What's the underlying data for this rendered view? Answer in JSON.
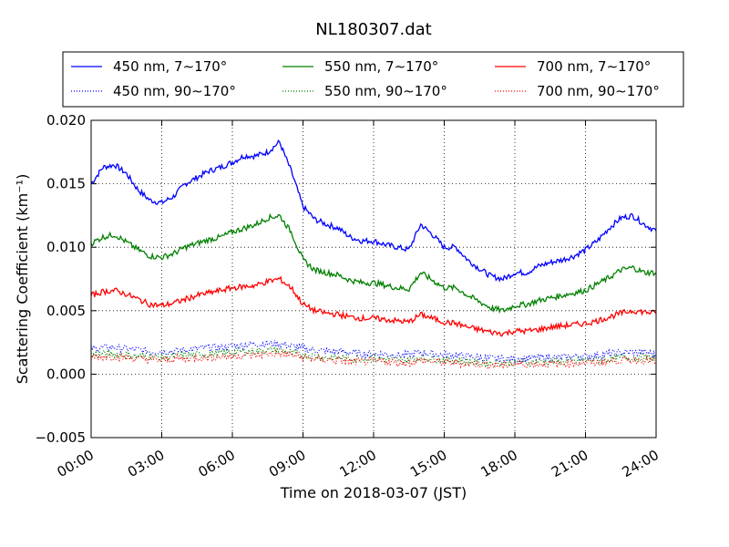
{
  "chart_data": {
    "type": "line",
    "title": "NL180307.dat",
    "xlabel": "Time on 2018-03-07 (JST)",
    "ylabel": "Scattering Coefficient (km⁻¹)",
    "xlim": [
      "00:00",
      "24:00"
    ],
    "ylim": [
      -0.005,
      0.02
    ],
    "grid": true,
    "legend_position": "top",
    "x_ticks": [
      "00:00",
      "03:00",
      "06:00",
      "09:00",
      "12:00",
      "15:00",
      "18:00",
      "21:00",
      "24:00"
    ],
    "y_ticks": [
      "−0.005",
      "0.000",
      "0.005",
      "0.010",
      "0.015",
      "0.020"
    ],
    "x": [
      "00:00",
      "00:30",
      "01:00",
      "01:30",
      "02:00",
      "02:30",
      "03:00",
      "03:30",
      "04:00",
      "04:30",
      "05:00",
      "05:30",
      "06:00",
      "06:30",
      "07:00",
      "07:30",
      "08:00",
      "08:30",
      "09:00",
      "09:30",
      "10:00",
      "10:30",
      "11:00",
      "11:30",
      "12:00",
      "12:30",
      "13:00",
      "13:30",
      "14:00",
      "14:30",
      "15:00",
      "15:30",
      "16:00",
      "16:30",
      "17:00",
      "17:30",
      "18:00",
      "18:30",
      "19:00",
      "19:30",
      "20:00",
      "20:30",
      "21:00",
      "21:30",
      "22:00",
      "22:30",
      "23:00",
      "23:30",
      "24:00"
    ],
    "series": [
      {
        "name": "450 nm, 7∼170°",
        "color": "#0000ff",
        "style": "solid",
        "values": [
          0.015,
          0.0163,
          0.0165,
          0.0158,
          0.0145,
          0.0137,
          0.0135,
          0.014,
          0.015,
          0.0155,
          0.016,
          0.0163,
          0.0167,
          0.0172,
          0.0172,
          0.0175,
          0.0183,
          0.016,
          0.0132,
          0.0122,
          0.0118,
          0.0115,
          0.0108,
          0.0105,
          0.0105,
          0.0102,
          0.01,
          0.0098,
          0.0118,
          0.011,
          0.01,
          0.01,
          0.009,
          0.0083,
          0.0077,
          0.0075,
          0.008,
          0.008,
          0.0085,
          0.0088,
          0.009,
          0.0093,
          0.0098,
          0.0105,
          0.0115,
          0.0123,
          0.0125,
          0.0118,
          0.0113
        ]
      },
      {
        "name": "450 nm, 90∼170°",
        "color": "#0000ff",
        "style": "dotted",
        "values": [
          0.002,
          0.0021,
          0.0021,
          0.002,
          0.0019,
          0.0018,
          0.0018,
          0.0018,
          0.0019,
          0.002,
          0.0021,
          0.0021,
          0.0022,
          0.0023,
          0.0024,
          0.0024,
          0.0024,
          0.0022,
          0.002,
          0.0019,
          0.0018,
          0.0018,
          0.0017,
          0.0016,
          0.0016,
          0.0016,
          0.0015,
          0.0015,
          0.0017,
          0.0016,
          0.0015,
          0.0015,
          0.0014,
          0.0013,
          0.0012,
          0.0012,
          0.0012,
          0.0012,
          0.0013,
          0.0013,
          0.0013,
          0.0014,
          0.0014,
          0.0015,
          0.0016,
          0.0017,
          0.0017,
          0.0017,
          0.0016
        ]
      },
      {
        "name": "550 nm, 7∼170°",
        "color": "#008000",
        "style": "solid",
        "values": [
          0.0103,
          0.0108,
          0.011,
          0.0104,
          0.0098,
          0.0093,
          0.0092,
          0.0095,
          0.01,
          0.0103,
          0.0106,
          0.0108,
          0.0112,
          0.0115,
          0.0118,
          0.0123,
          0.0125,
          0.0112,
          0.009,
          0.0082,
          0.008,
          0.0078,
          0.0074,
          0.0072,
          0.0072,
          0.007,
          0.0068,
          0.0067,
          0.008,
          0.0074,
          0.0068,
          0.0068,
          0.0062,
          0.0057,
          0.0052,
          0.005,
          0.0054,
          0.0055,
          0.0058,
          0.006,
          0.0062,
          0.0064,
          0.0066,
          0.0071,
          0.0076,
          0.0082,
          0.0084,
          0.008,
          0.008
        ]
      },
      {
        "name": "550 nm, 90∼170°",
        "color": "#008000",
        "style": "dotted",
        "values": [
          0.0015,
          0.0016,
          0.0016,
          0.0015,
          0.0014,
          0.0014,
          0.0013,
          0.0014,
          0.0015,
          0.0015,
          0.0016,
          0.0016,
          0.0017,
          0.0018,
          0.0018,
          0.0019,
          0.0019,
          0.0017,
          0.0015,
          0.0014,
          0.0013,
          0.0013,
          0.0012,
          0.0012,
          0.0012,
          0.0012,
          0.0011,
          0.0011,
          0.0013,
          0.0012,
          0.0011,
          0.0011,
          0.001,
          0.0009,
          0.0009,
          0.0009,
          0.0009,
          0.0009,
          0.001,
          0.001,
          0.001,
          0.001,
          0.0011,
          0.0011,
          0.0012,
          0.0013,
          0.0013,
          0.0013,
          0.0012
        ]
      },
      {
        "name": "700 nm, 7∼170°",
        "color": "#ff0000",
        "style": "solid",
        "values": [
          0.0062,
          0.0065,
          0.0066,
          0.0063,
          0.0059,
          0.0055,
          0.0054,
          0.0056,
          0.0059,
          0.0062,
          0.0064,
          0.0066,
          0.0068,
          0.0069,
          0.007,
          0.0073,
          0.0075,
          0.0068,
          0.0055,
          0.005,
          0.0048,
          0.0047,
          0.0045,
          0.0044,
          0.0044,
          0.0043,
          0.0042,
          0.0041,
          0.0047,
          0.0044,
          0.0041,
          0.004,
          0.0037,
          0.0035,
          0.0033,
          0.0032,
          0.0034,
          0.0034,
          0.0035,
          0.0037,
          0.0038,
          0.0039,
          0.004,
          0.0042,
          0.0045,
          0.0048,
          0.005,
          0.0049,
          0.0048
        ]
      },
      {
        "name": "700 nm, 90∼170°",
        "color": "#ff0000",
        "style": "dotted",
        "values": [
          0.0013,
          0.0014,
          0.0014,
          0.0013,
          0.0012,
          0.0012,
          0.0011,
          0.0012,
          0.0012,
          0.0013,
          0.0013,
          0.0014,
          0.0014,
          0.0015,
          0.0015,
          0.0016,
          0.0016,
          0.0015,
          0.0013,
          0.0012,
          0.0011,
          0.0011,
          0.001,
          0.001,
          0.001,
          0.001,
          0.0009,
          0.0009,
          0.0011,
          0.001,
          0.0009,
          0.0009,
          0.0008,
          0.0008,
          0.0007,
          0.0007,
          0.0008,
          0.0008,
          0.0008,
          0.0008,
          0.0008,
          0.0009,
          0.0009,
          0.0009,
          0.001,
          0.0011,
          0.0011,
          0.0011,
          0.001
        ]
      }
    ]
  }
}
